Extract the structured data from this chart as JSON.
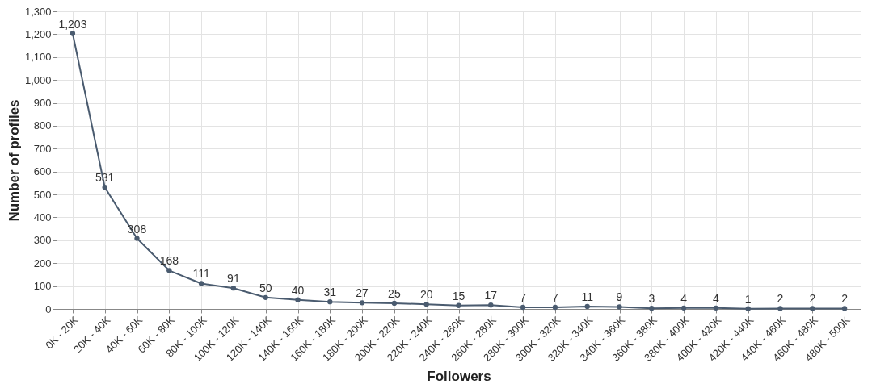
{
  "chart_data": {
    "type": "line",
    "xlabel": "Followers",
    "ylabel": "Number of profiles",
    "categories": [
      "0K - 20K",
      "20K - 40K",
      "40K - 60K",
      "60K - 80K",
      "80K - 100K",
      "100K - 120K",
      "120K - 140K",
      "140K - 160K",
      "160K - 180K",
      "180K - 200K",
      "200K - 220K",
      "220K - 240K",
      "240K - 260K",
      "260K - 280K",
      "280K - 300K",
      "300K - 320K",
      "320K - 340K",
      "340K - 360K",
      "360K - 380K",
      "380K - 400K",
      "400K - 420K",
      "420K - 440K",
      "440K - 460K",
      "460K - 480K",
      "480K - 500K"
    ],
    "series": [
      {
        "color": "#4a5b6f",
        "values": [
          1203,
          531,
          308,
          168,
          111,
          91,
          50,
          40,
          31,
          27,
          25,
          20,
          15,
          17,
          7,
          7,
          11,
          9,
          3,
          4,
          4,
          1,
          2,
          2,
          2
        ],
        "value_labels": [
          "1,203",
          "531",
          "308",
          "168",
          "111",
          "91",
          "50",
          "40",
          "31",
          "27",
          "25",
          "20",
          "15",
          "17",
          "7",
          "7",
          "11",
          "9",
          "3",
          "4",
          "4",
          "1",
          "2",
          "2",
          "2"
        ]
      }
    ],
    "ylim": [
      0,
      1300
    ],
    "yticks": [
      0,
      100,
      200,
      300,
      400,
      500,
      600,
      700,
      800,
      900,
      {
        "value": 1000,
        "label": "1,000"
      },
      {
        "value": 1100,
        "label": "1,100"
      },
      {
        "value": 1200,
        "label": "1,200"
      },
      {
        "value": 1300,
        "label": "1,300"
      }
    ],
    "grid": true,
    "marker": "circle",
    "line_style": "solid"
  }
}
